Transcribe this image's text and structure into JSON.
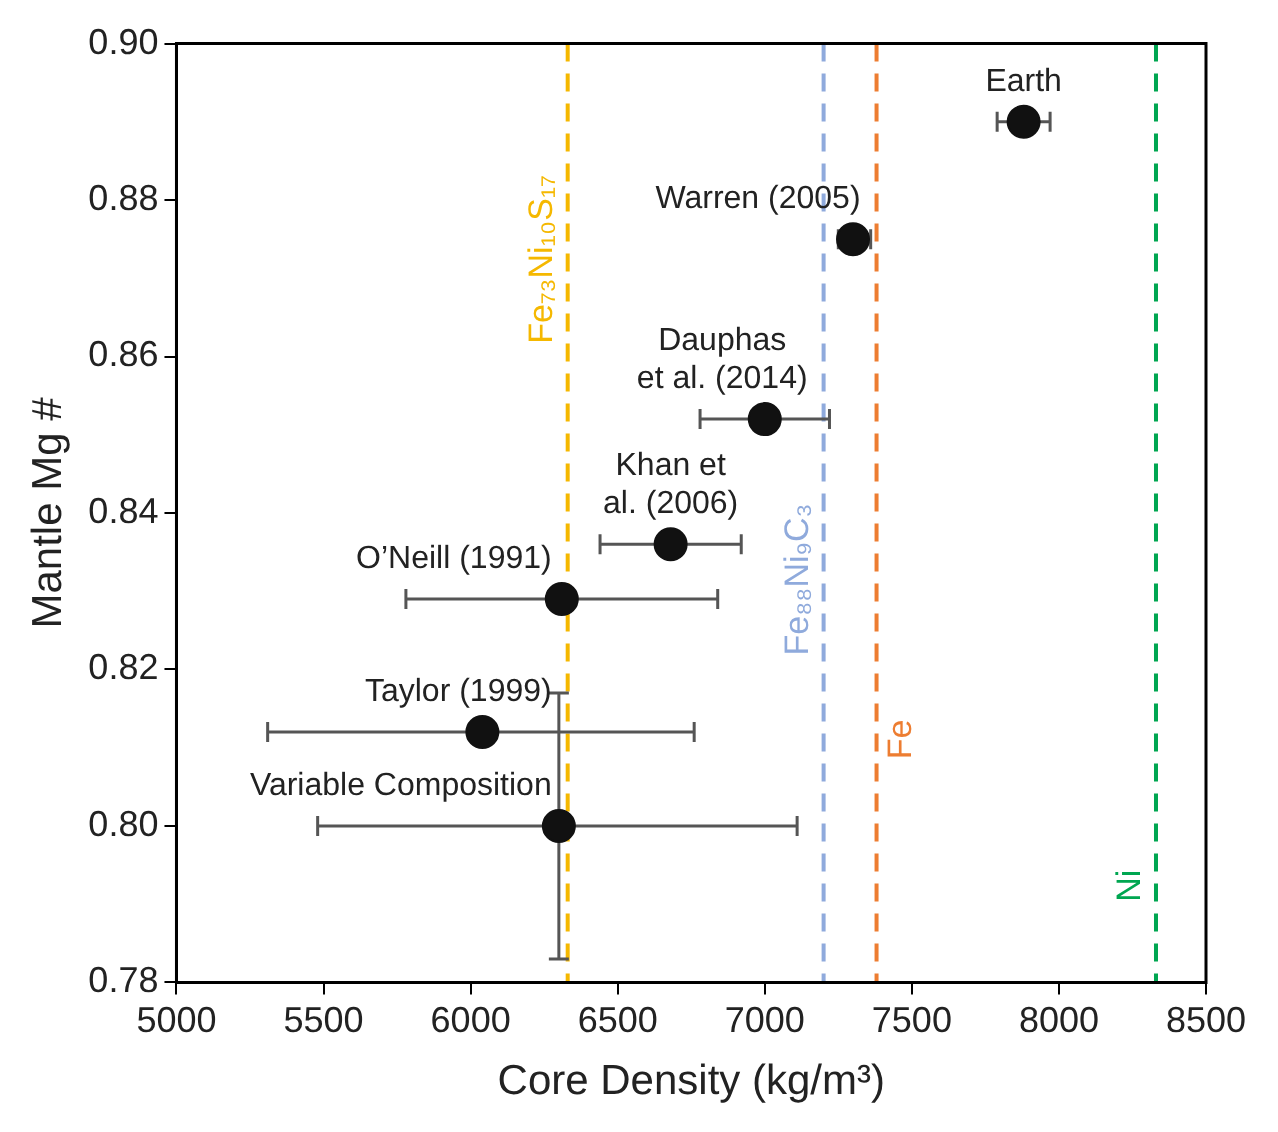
{
  "chart_data": {
    "type": "scatter",
    "xlabel": "Core Density (kg/m³)",
    "ylabel": "Mantle Mg #",
    "x": [
      7880,
      7300,
      7000,
      6680,
      6310,
      6040,
      6300
    ],
    "series": [
      {
        "color": "#111111",
        "values": [
          0.89,
          0.875,
          0.852,
          0.836,
          0.829,
          0.812,
          0.8
        ],
        "xerrors": [
          [
            7790,
            7970
          ],
          [
            7250,
            7360
          ],
          [
            6780,
            7220
          ],
          [
            6440,
            6920
          ],
          [
            5780,
            6840
          ],
          [
            5310,
            6760
          ],
          [
            5480,
            7110
          ]
        ],
        "errors": [
          null,
          null,
          null,
          null,
          null,
          null,
          [
            0.783,
            0.817
          ]
        ]
      }
    ],
    "marker": "circle",
    "xlim": [
      5000,
      8500
    ],
    "xticks": [
      5000,
      5500,
      6000,
      6500,
      7000,
      7500,
      8000,
      8500
    ],
    "ylim": [
      0.78,
      0.9
    ],
    "yticks": [
      {
        "value": 0.78,
        "label": "0.78"
      },
      {
        "value": 0.8,
        "label": "0.80"
      },
      {
        "value": 0.82,
        "label": "0.82"
      },
      {
        "value": 0.84,
        "label": "0.84"
      },
      {
        "value": 0.86,
        "label": "0.86"
      },
      {
        "value": 0.88,
        "label": "0.88"
      },
      {
        "value": 0.9,
        "label": "0.90"
      }
    ],
    "grid": false,
    "legend": false,
    "ref_lines": [
      {
        "axis": "x",
        "value": 6330,
        "label": "Fe₇₃Ni₁₀S₁₇",
        "color": "#f5b800",
        "line_style": "dashed"
      },
      {
        "axis": "x",
        "value": 7200,
        "label": "Fe₈₈Ni₉C₃",
        "color": "#8faadc",
        "line_style": "dashed"
      },
      {
        "axis": "x",
        "value": 7380,
        "label": "Fe",
        "color": "#ed7d31",
        "line_style": "dashed"
      },
      {
        "axis": "x",
        "value": 8330,
        "label": "Ni",
        "color": "#00a651",
        "line_style": "dashed"
      }
    ],
    "annotations": [
      {
        "text": "Earth",
        "x": 7880,
        "y": 0.89
      },
      {
        "text": "Warren (2005)",
        "x": 7300,
        "y": 0.875
      },
      {
        "text": "Dauphas\net al. (2014)",
        "x": 7000,
        "y": 0.852
      },
      {
        "text": "Khan et\nal. (2006)",
        "x": 6680,
        "y": 0.836
      },
      {
        "text": "O’Neill (1991)",
        "x": 6310,
        "y": 0.829
      },
      {
        "text": "Taylor (1999)",
        "x": 6040,
        "y": 0.812
      },
      {
        "text": "Variable Composition",
        "x": 6300,
        "y": 0.8
      }
    ]
  }
}
